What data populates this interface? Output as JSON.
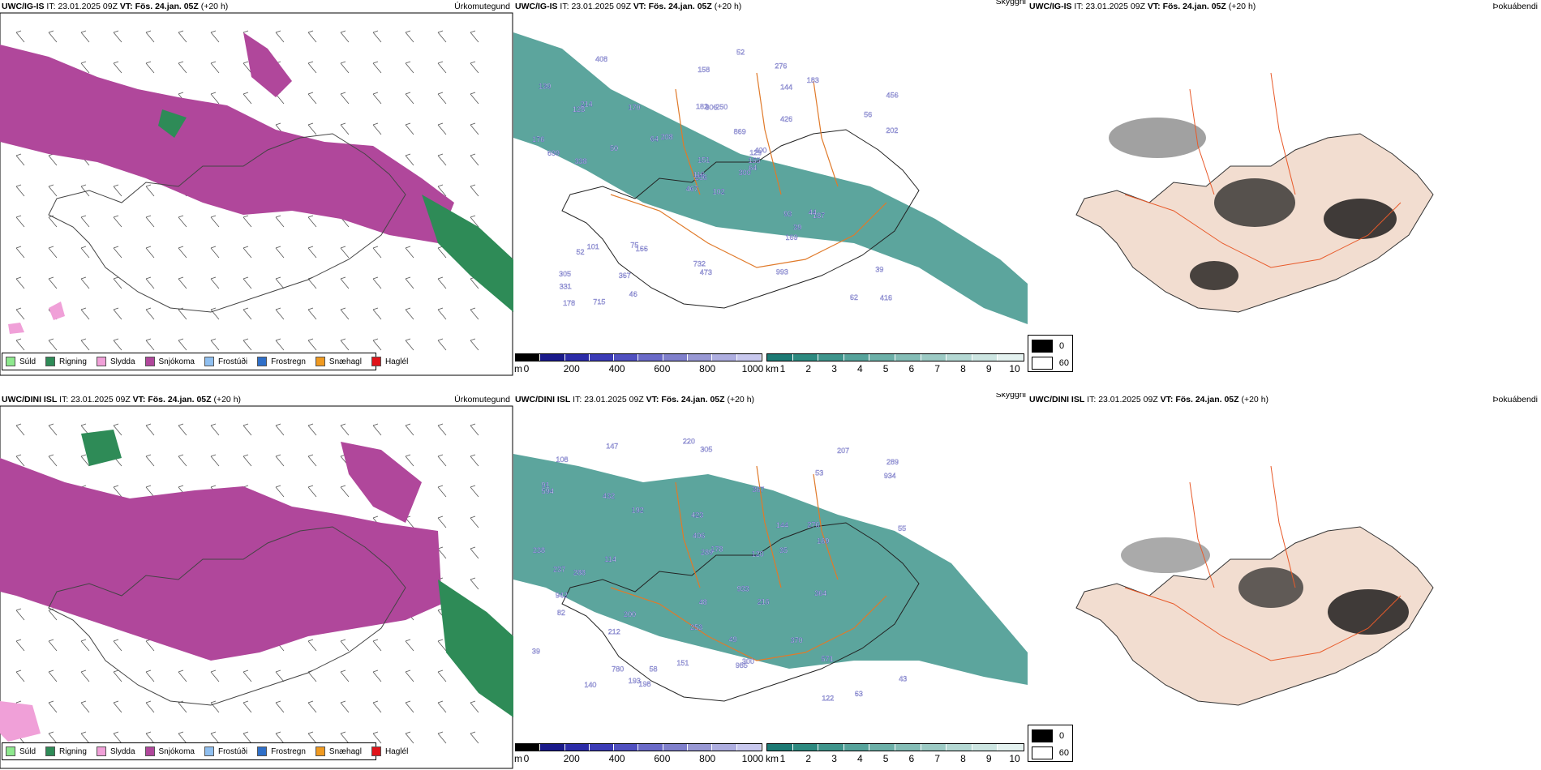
{
  "rows": [
    {
      "model_label": "UWC/IG-IS",
      "it_label": "IT:",
      "it_time": "23.01.2025 09Z",
      "vt_label": "VT:",
      "vt_time": "Fös. 24.jan. 05Z",
      "lead": "(+20 h)",
      "titles": {
        "precip": "Úrkomutegund",
        "visibility": "Skyggni",
        "fog": "Þokuábendi"
      },
      "vis_labels": [
        "102",
        "128",
        "256",
        "305",
        "129",
        "166",
        "276",
        "250",
        "144",
        "300",
        "408",
        "416",
        "338",
        "456",
        "467",
        "426",
        "715",
        "182",
        "869",
        "101",
        "208",
        "331",
        "367",
        "306",
        "400",
        "187",
        "214",
        "158",
        "699",
        "93",
        "202",
        "116",
        "732",
        "151",
        "170",
        "183",
        "75",
        "62",
        "39",
        "44",
        "52",
        "64",
        "50",
        "169",
        "46",
        "176",
        "155",
        "178",
        "473",
        "64",
        "52",
        "56",
        "139",
        "39",
        "993"
      ]
    },
    {
      "model_label": "UWC/DINI ISL",
      "it_label": "IT:",
      "it_time": "23.01.2025 09Z",
      "vt_label": "VT:",
      "vt_time": "Fös. 24.jan. 05Z",
      "lead": "(+20 h)",
      "titles": {
        "precip": "Úrkomutegund",
        "visibility": "Skyggni",
        "fog": "Þokuábendi"
      },
      "vis_labels": [
        "238",
        "305",
        "276",
        "289",
        "91",
        "63",
        "288",
        "367",
        "423",
        "207",
        "178",
        "364",
        "220",
        "594",
        "432",
        "212",
        "300",
        "237",
        "933",
        "253",
        "370",
        "571",
        "934",
        "406",
        "780",
        "289",
        "216",
        "147",
        "198",
        "985",
        "942",
        "122",
        "120",
        "140",
        "193",
        "82",
        "169",
        "108",
        "58",
        "192",
        "49",
        "35",
        "43",
        "55",
        "48",
        "200",
        "53",
        "39",
        "151",
        "114",
        "144"
      ]
    }
  ],
  "precip_legend": [
    {
      "label": "Súld",
      "color": "#8ee88e"
    },
    {
      "label": "Rigning",
      "color": "#2e8b57"
    },
    {
      "label": "Slydda",
      "color": "#f0a0d8"
    },
    {
      "label": "Snjókoma",
      "color": "#b0479b"
    },
    {
      "label": "Frostúði",
      "color": "#8fbff0"
    },
    {
      "label": "Frostregn",
      "color": "#2f6fc8"
    },
    {
      "label": "Snæhagl",
      "color": "#f09a20"
    },
    {
      "label": "Haglél",
      "color": "#e0141a"
    }
  ],
  "cbar_height": {
    "unit": "m",
    "ticks": [
      "0",
      "200",
      "400",
      "600",
      "800",
      "1000"
    ],
    "colors": [
      "#000000",
      "#1a1a8a",
      "#2c2ca8",
      "#3b3bb6",
      "#5050c0",
      "#6a6ac8",
      "#8080cc",
      "#9898d4",
      "#aeaee0",
      "#c8c8ee"
    ]
  },
  "cbar_km": {
    "unit": "km",
    "ticks": [
      "1",
      "2",
      "3",
      "4",
      "5",
      "6",
      "7",
      "8",
      "9",
      "10"
    ],
    "colors": [
      "#1d7a74",
      "#2d8a80",
      "#3f958c",
      "#56a39b",
      "#6cb0a8",
      "#84bdb6",
      "#9ccac4",
      "#b4d8d3",
      "#cce5e1",
      "#e4f2f0"
    ]
  },
  "fog_legend": [
    {
      "label": "0",
      "color": "#000000"
    },
    {
      "label": "60",
      "color": "#ffffff"
    }
  ],
  "colors": {
    "snow": "#b0479b",
    "rain": "#2e8b57",
    "sleet": "#f0a0d8",
    "drizzle": "#8ee88e",
    "vis_teal": "#3f958c",
    "vis_blue": "#2c2ca8",
    "roads": "#e07a2a",
    "land_fog": "#f2ddd0",
    "fog_roads": "#e85a2a"
  }
}
